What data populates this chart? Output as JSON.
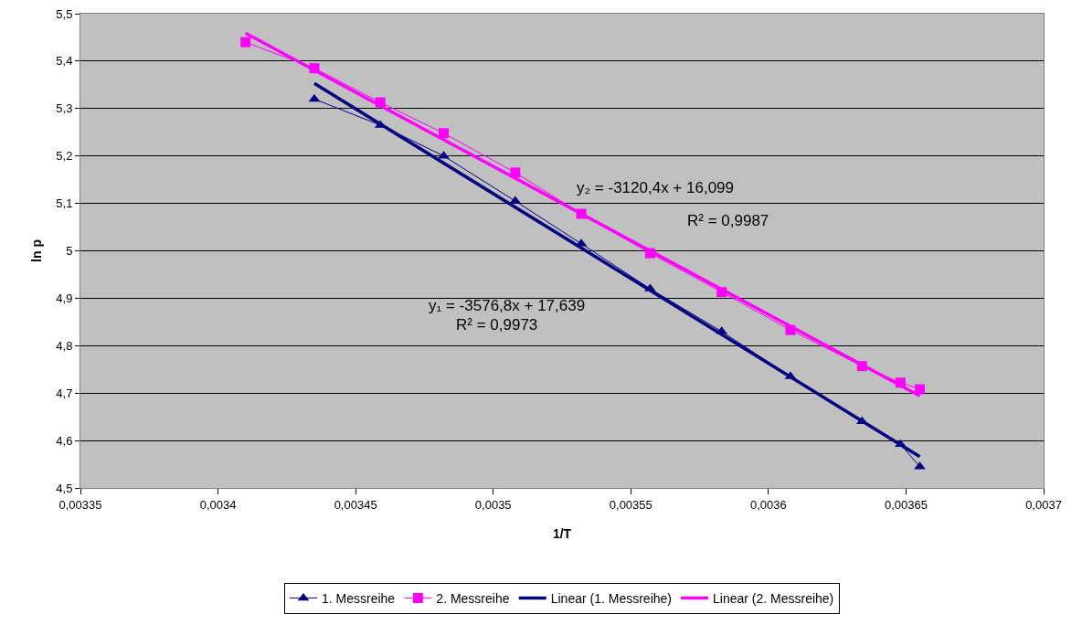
{
  "chart_data": {
    "type": "line",
    "xlabel": "1/T",
    "ylabel": "ln p",
    "xlim": [
      0.00335,
      0.0037
    ],
    "xticks": [
      {
        "value": 0.00335,
        "label": "0,00335"
      },
      {
        "value": 0.0034,
        "label": "0,0034"
      },
      {
        "value": 0.00345,
        "label": "0,00345"
      },
      {
        "value": 0.0035,
        "label": "0,0035"
      },
      {
        "value": 0.00355,
        "label": "0,00355"
      },
      {
        "value": 0.0036,
        "label": "0,0036"
      },
      {
        "value": 0.00365,
        "label": "0,00365"
      },
      {
        "value": 0.0037,
        "label": "0,0037"
      }
    ],
    "ylim": [
      4.5,
      5.5
    ],
    "yticks": [
      {
        "value": 4.5,
        "label": "4,5"
      },
      {
        "value": 4.6,
        "label": "4,6"
      },
      {
        "value": 4.7,
        "label": "4,7"
      },
      {
        "value": 4.8,
        "label": "4,8"
      },
      {
        "value": 4.9,
        "label": "4,9"
      },
      5,
      {
        "value": 5.1,
        "label": "5,1"
      },
      {
        "value": 5.2,
        "label": "5,2"
      },
      {
        "value": 5.3,
        "label": "5,3"
      },
      {
        "value": 5.4,
        "label": "5,4"
      },
      {
        "value": 5.5,
        "label": "5,5"
      }
    ],
    "grid": "y",
    "legend": "bottom",
    "line_style": "solid",
    "series": [
      {
        "name": "1. Messreihe",
        "color": "#000080",
        "marker": "triangle",
        "x": [
          0.003435,
          0.003459,
          0.003482,
          0.003508,
          0.003532,
          0.003557,
          0.003583,
          0.003608,
          0.003634,
          0.003648,
          0.003655
        ],
        "values": [
          5.32,
          5.265,
          5.2,
          5.105,
          5.015,
          4.92,
          4.83,
          4.735,
          4.64,
          4.592,
          4.545
        ]
      },
      {
        "name": "2. Messreihe",
        "color": "#ff00ff",
        "marker": "square",
        "x": [
          0.00341,
          0.003435,
          0.003459,
          0.003482,
          0.003508,
          0.003532,
          0.003557,
          0.003583,
          0.003608,
          0.003634,
          0.003648,
          0.003655
        ],
        "values": [
          5.44,
          5.385,
          5.313,
          5.248,
          5.165,
          5.078,
          4.995,
          4.913,
          4.833,
          4.757,
          4.722,
          4.708
        ]
      },
      {
        "name": "Linear (1. Messreihe)",
        "color": "#000080",
        "marker": "none",
        "x": [
          0.003435,
          0.003655
        ],
        "values": [
          5.353,
          4.566
        ]
      },
      {
        "name": "Linear (2. Messreihe)",
        "color": "#ff00ff",
        "marker": "none",
        "x": [
          0.00341,
          0.003655
        ],
        "values": [
          5.459,
          4.694
        ]
      }
    ],
    "annotations": [
      "y₂ = -3120,4x + 16,099",
      "R² = 0,9987",
      "y₁ = -3576,8x + 17,639",
      "R² = 0,9973"
    ]
  }
}
